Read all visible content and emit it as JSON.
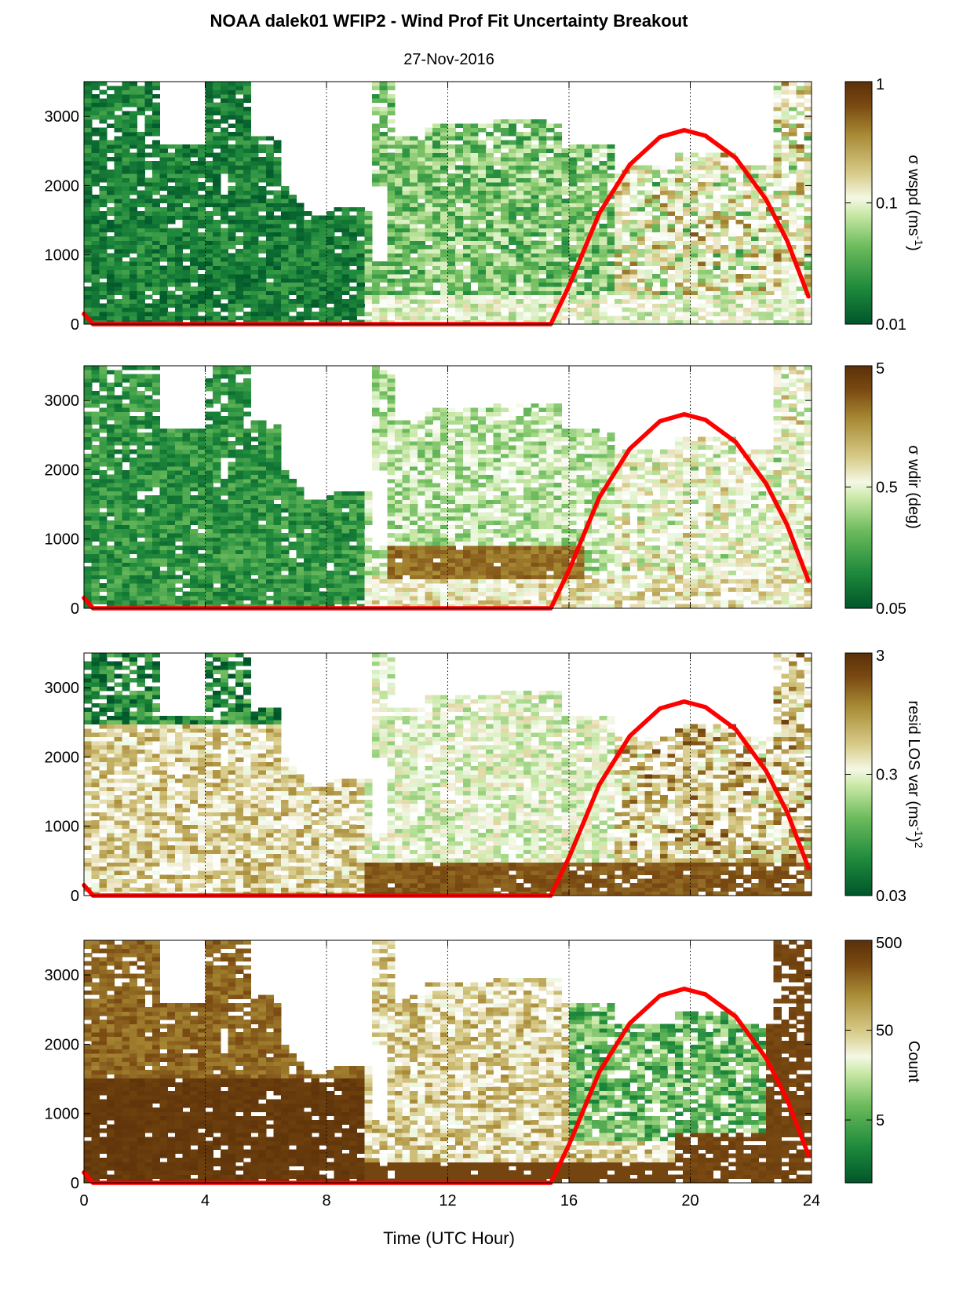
{
  "figure": {
    "title": "NOAA dalek01 WFIP2 - Wind Prof Fit Uncertainty Breakout",
    "subtitle": "27-Nov-2016",
    "xlabel": "Time (UTC Hour)",
    "xticks": [
      "0",
      "4",
      "8",
      "16",
      "12",
      "20",
      "24"
    ],
    "xtick_values": [
      0,
      4,
      8,
      16,
      12,
      20,
      24
    ],
    "yticks": [
      "0",
      "1000",
      "2000",
      "3000"
    ],
    "colors": {
      "sun_curve": "#ff0000",
      "colormap": [
        "#00562a",
        "#1f8a3c",
        "#6cbb5c",
        "#c7e7a4",
        "#ffffff",
        "#d8cc8a",
        "#a88a35",
        "#7a4a12",
        "#5a3008"
      ]
    }
  },
  "chart_data": [
    {
      "type": "heatmap",
      "panel": "sigma-wspd",
      "xlim": [
        0,
        24
      ],
      "ylim": [
        0,
        3500
      ],
      "yticks": [
        0,
        1000,
        2000,
        3000
      ],
      "grid": "vertical dotted at 4,8,12,16,20",
      "colorbar": {
        "label_main": "σ wspd (ms",
        "label_sup": "-1",
        "label_end": ")",
        "scale": "log",
        "range": [
          0.01,
          1
        ],
        "ticks": [
          "0.01",
          "0.1",
          "1"
        ]
      },
      "overlay": {
        "name": "",
        "color": "#ff0000",
        "x": [
          0,
          0.3,
          15.4,
          16,
          17,
          18,
          19,
          19.8,
          20.5,
          21.5,
          22.5,
          23.2,
          23.9
        ],
        "y": [
          150,
          0,
          0,
          550,
          1600,
          2300,
          2700,
          2800,
          2720,
          2400,
          1800,
          1200,
          400
        ]
      }
    },
    {
      "type": "heatmap",
      "panel": "sigma-wdir",
      "xlim": [
        0,
        24
      ],
      "ylim": [
        0,
        3500
      ],
      "yticks": [
        0,
        1000,
        2000,
        3000
      ],
      "grid": "vertical dotted at 4,8,12,16,20",
      "colorbar": {
        "label_main": "σ wdir (deg)",
        "label_sup": "",
        "label_end": "",
        "scale": "log",
        "range": [
          0.05,
          5
        ],
        "ticks": [
          "0.05",
          "0.5",
          "5"
        ]
      },
      "overlay": {
        "name": "",
        "color": "#ff0000",
        "x": [
          0,
          0.3,
          15.4,
          16,
          17,
          18,
          19,
          19.8,
          20.5,
          21.5,
          22.5,
          23.2,
          23.9
        ],
        "y": [
          150,
          0,
          0,
          550,
          1600,
          2300,
          2700,
          2800,
          2720,
          2400,
          1800,
          1200,
          400
        ]
      }
    },
    {
      "type": "heatmap",
      "panel": "resid-los-var",
      "xlim": [
        0,
        24
      ],
      "ylim": [
        0,
        3500
      ],
      "yticks": [
        0,
        1000,
        2000,
        3000
      ],
      "grid": "vertical dotted at 4,8,12,16,20",
      "colorbar": {
        "label_main": "resid LOS var (ms",
        "label_sup": "-1",
        "label_end": ")",
        "label_sup2": "2",
        "scale": "log",
        "range": [
          0.03,
          3
        ],
        "ticks": [
          "0.03",
          "0.3",
          "3"
        ]
      },
      "overlay": {
        "name": "",
        "color": "#ff0000",
        "x": [
          0,
          0.3,
          15.4,
          16,
          17,
          18,
          19,
          19.8,
          20.5,
          21.5,
          22.5,
          23.2,
          23.9
        ],
        "y": [
          150,
          0,
          0,
          550,
          1600,
          2300,
          2700,
          2800,
          2720,
          2400,
          1800,
          1200,
          400
        ]
      }
    },
    {
      "type": "heatmap",
      "panel": "count",
      "xlim": [
        0,
        24
      ],
      "ylim": [
        0,
        3500
      ],
      "yticks": [
        0,
        1000,
        2000,
        3000
      ],
      "grid": "vertical dotted at 4,8,12,16,20",
      "colorbar": {
        "label_main": "Count",
        "label_sup": "",
        "label_end": "",
        "scale": "log",
        "range": [
          1,
          500
        ],
        "ticks": [
          "5",
          "50",
          "500"
        ]
      },
      "overlay": {
        "name": "",
        "color": "#ff0000",
        "x": [
          0,
          0.3,
          15.4,
          16,
          17,
          18,
          19,
          19.8,
          20.5,
          21.5,
          22.5,
          23.2,
          23.9
        ],
        "y": [
          150,
          0,
          0,
          550,
          1600,
          2300,
          2700,
          2800,
          2720,
          2400,
          1800,
          1200,
          400
        ]
      }
    }
  ]
}
